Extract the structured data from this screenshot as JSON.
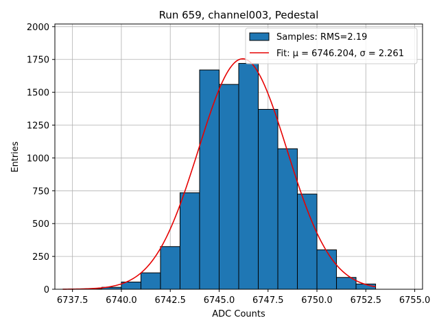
{
  "chart_data": {
    "type": "bar",
    "title": "Run 659, channel003, Pedestal",
    "xlabel": "ADC Counts",
    "ylabel": "Entries",
    "xlim": [
      6736.6,
      6755.4
    ],
    "ylim": [
      0,
      2020
    ],
    "xticks": [
      6737.5,
      6740.0,
      6742.5,
      6745.0,
      6747.5,
      6750.0,
      6752.5,
      6755.0
    ],
    "xtick_labels": [
      "6737.5",
      "6740.0",
      "6742.5",
      "6745.0",
      "6747.5",
      "6750.0",
      "6752.5",
      "6755.0"
    ],
    "yticks": [
      0,
      250,
      500,
      750,
      1000,
      1250,
      1500,
      1750,
      2000
    ],
    "ytick_labels": [
      "0",
      "250",
      "500",
      "750",
      "1000",
      "1250",
      "1500",
      "1750",
      "2000"
    ],
    "grid": true,
    "legend_position": "top-right",
    "histogram": {
      "name": "Samples: RMS=2.19",
      "color": "#1f77b4",
      "edge_color": "#000000",
      "bin_edges": [
        6738.0,
        6739.0,
        6740.0,
        6741.0,
        6742.0,
        6743.0,
        6744.0,
        6745.0,
        6746.0,
        6747.0,
        6748.0,
        6749.0,
        6750.0,
        6751.0,
        6752.0,
        6753.0
      ],
      "values": [
        3,
        15,
        55,
        125,
        325,
        735,
        1670,
        1560,
        1720,
        1370,
        1070,
        725,
        300,
        90,
        40
      ]
    },
    "fit": {
      "name": "Fit: μ = 6746.204, σ = 2.261",
      "mu_label": "μ",
      "sigma_label": "σ",
      "color": "#e60000",
      "mu": 6746.204,
      "sigma": 2.261,
      "amplitude": 1755,
      "x_range": [
        6737.0,
        6753.0
      ]
    }
  }
}
